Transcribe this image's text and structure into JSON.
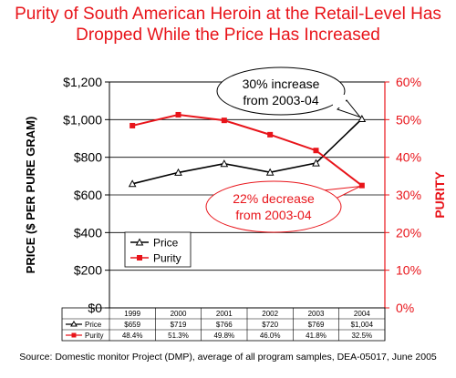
{
  "title": {
    "line1": "Purity of South American Heroin at the Retail-Level Has",
    "line2": "Dropped While the Price Has Increased"
  },
  "source": "Source: Domestic monitor Project (DMP), average of all program samples, DEA-05017, June 2005",
  "colors": {
    "title": "#e8141a",
    "price": "#000000",
    "purity": "#e8141a",
    "callout_price_border": "#000000",
    "callout_purity_border": "#e8141a"
  },
  "chart_data": {
    "type": "line",
    "categories": [
      "1999",
      "2000",
      "2001",
      "2002",
      "2003",
      "2004"
    ],
    "series": [
      {
        "name": "Price",
        "axis": "left",
        "values": [
          659,
          719,
          766,
          720,
          769,
          1004
        ],
        "labels": [
          "$659",
          "$719",
          "$766",
          "$720",
          "$769",
          "$1,004"
        ],
        "marker": "triangle-open"
      },
      {
        "name": "Purity",
        "axis": "right",
        "values": [
          48.4,
          51.3,
          49.8,
          46.0,
          41.8,
          32.5
        ],
        "labels": [
          "48.4%",
          "51.3%",
          "49.8%",
          "46.0%",
          "41.8%",
          "32.5%"
        ],
        "marker": "square-filled"
      }
    ],
    "ylabel_left": "PRICE ($ PER PURE GRAM)",
    "ylabel_right": "PURITY",
    "ylim_left": [
      0,
      1200
    ],
    "ylim_right": [
      0,
      60
    ],
    "yticks_left": [
      "$0",
      "$200",
      "$400",
      "$600",
      "$800",
      "$1,000",
      "$1,200"
    ],
    "yticks_right": [
      "0%",
      "10%",
      "20%",
      "30%",
      "40%",
      "50%",
      "60%"
    ],
    "grid": true,
    "legend_position": "bottom-left",
    "data_table": true,
    "annotations": [
      {
        "text_line1": "30% increase",
        "text_line2": "from 2003-04",
        "points_to": "Price 2004"
      },
      {
        "text_line1": "22% decrease",
        "text_line2": "from 2003-04",
        "points_to": "Purity 2004"
      }
    ]
  }
}
